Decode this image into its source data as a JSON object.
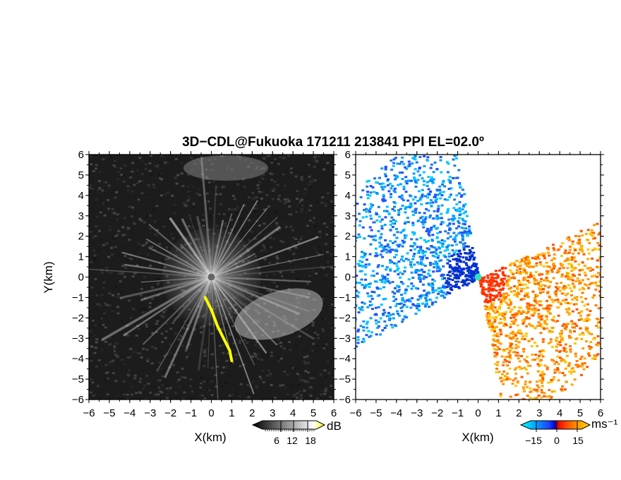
{
  "title": "3D−CDL@Fukuoka 171211 213841 PPI EL=02.0º",
  "panels": [
    {
      "id": "left",
      "xlabel": "X(km)",
      "ylabel": "Y(km)",
      "colorbar": {
        "unit": "dB",
        "ticks": [
          "6",
          "12",
          "18"
        ]
      }
    },
    {
      "id": "right",
      "xlabel": "X(km)",
      "ylabel": "",
      "colorbar": {
        "unit": "ms⁻¹",
        "ticks": [
          "−15",
          "0",
          "15"
        ]
      }
    }
  ],
  "chart_data": [
    {
      "type": "heatmap",
      "title": "3D−CDL@Fukuoka 171211 213841 PPI EL=02.0º",
      "quantity": "Doppler lidar backscatter intensity (PPI scan, grayscale)",
      "xlabel": "X(km)",
      "ylabel": "Y(km)",
      "xlim": [
        -6,
        6
      ],
      "ylim": [
        -6,
        6
      ],
      "xticks": [
        -6,
        -5,
        -4,
        -3,
        -2,
        -1,
        0,
        1,
        2,
        3,
        4,
        5,
        6
      ],
      "yticks": [
        -6,
        -5,
        -4,
        -3,
        -2,
        -1,
        0,
        1,
        2,
        3,
        4,
        5,
        6
      ],
      "colorbar": {
        "unit": "dB",
        "ticks": [
          6,
          12,
          18
        ],
        "colormap": "grayscale black-to-white, yellow above 18"
      },
      "highlight_track": {
        "color": "#ffff00",
        "points": [
          [
            -0.3,
            -1.0
          ],
          [
            0.0,
            -1.6
          ],
          [
            0.3,
            -2.4
          ],
          [
            0.6,
            -3.0
          ],
          [
            0.9,
            -3.6
          ],
          [
            1.0,
            -4.1
          ]
        ]
      }
    },
    {
      "type": "heatmap",
      "title": "3D−CDL@Fukuoka 171211 213841 PPI EL=02.0º",
      "quantity": "Doppler radial velocity (PPI scan)",
      "xlabel": "X(km)",
      "ylabel": "",
      "xlim": [
        -6,
        6
      ],
      "ylim": [
        -6,
        6
      ],
      "xticks": [
        -6,
        -5,
        -4,
        -3,
        -2,
        -1,
        0,
        1,
        2,
        3,
        4,
        5,
        6
      ],
      "yticks": [
        -6,
        -5,
        -4,
        -3,
        -2,
        -1,
        0,
        1,
        2,
        3,
        4,
        5,
        6
      ],
      "colorbar": {
        "unit": "ms⁻¹",
        "ticks": [
          -15,
          0,
          15
        ],
        "colormap": "cyan-blue (negative) to red-orange-yellow (positive)"
      },
      "lobes": [
        {
          "sign": "negative",
          "color": "#1e78e6",
          "direction": "west / north-west"
        },
        {
          "sign": "positive",
          "color": "#ff7a00",
          "direction": "east / south-east"
        }
      ]
    }
  ]
}
